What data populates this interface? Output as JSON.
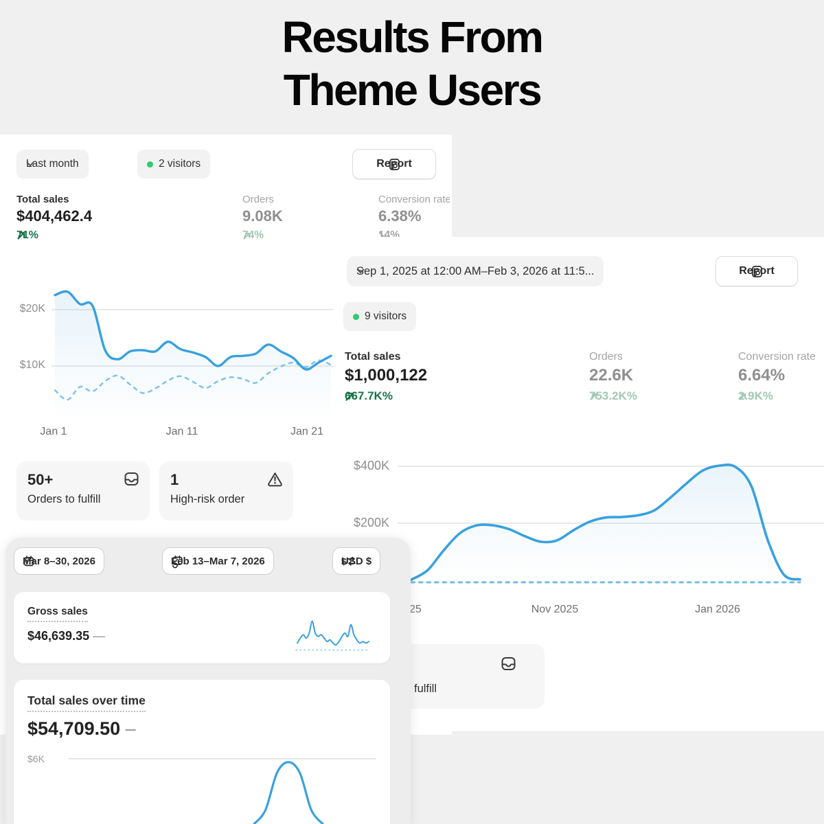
{
  "page": {
    "title_line1": "Results From",
    "title_line2": "Theme Users"
  },
  "colors": {
    "background": "#f0f0f0",
    "panel_white": "#ffffff",
    "panel_gray": "#ededee",
    "chart_blue": "#38a1de",
    "chart_blue_dashed": "#7fc3ea",
    "delta_green": "#17754a",
    "delta_sage": "#a0c8b4",
    "delta_gray": "#a6a6a6",
    "visitor_dot_green": "#2fcb70",
    "gridline": "#e2e2e2"
  },
  "panel_a": {
    "filter_label": "Last month",
    "visitors_badge": "2 visitors",
    "report_label": "Report",
    "metrics": [
      {
        "label": "Total sales",
        "value": "$404,462.4",
        "delta": "71%",
        "direction": "up"
      },
      {
        "label": "Orders",
        "value": "9.08K",
        "delta": "74%",
        "direction": "up"
      },
      {
        "label": "Conversion rate",
        "value": "6.38%",
        "delta": "14%",
        "direction": "down"
      }
    ],
    "cards": [
      {
        "value": "50+",
        "label": "Orders to fulfill",
        "icon": "inbox-icon"
      },
      {
        "value": "1",
        "label": "High-risk order",
        "icon": "alert-triangle-icon"
      }
    ]
  },
  "panel_b": {
    "date_range": "Sep 1, 2025 at 12:00 AM–Feb 3, 2026 at 11:5...",
    "report_label": "Report",
    "visitors_badge": "9 visitors",
    "metrics": [
      {
        "label": "Total sales",
        "value": "$1,000,122",
        "delta": "667.7K%",
        "direction": "up"
      },
      {
        "label": "Orders",
        "value": "22.6K",
        "delta": "753.2K%",
        "direction": "up"
      },
      {
        "label": "Conversion rate",
        "value": "6.64%",
        "delta": "2.9K%",
        "direction": "up"
      }
    ],
    "fulfill_card": {
      "visible_label": "fulfill",
      "icon": "inbox-icon"
    }
  },
  "panel_c": {
    "date_pill": "Mar 8–30, 2026",
    "compare_pill": "Feb 13–Mar 7, 2026",
    "currency_pill": "USD $",
    "cards": [
      {
        "title": "Gross sales",
        "value": "$46,639.35",
        "change": "—"
      },
      {
        "title": "Total sales over time",
        "value": "$54,709.50",
        "change": "–"
      }
    ]
  },
  "chart_data": [
    {
      "id": "last-month-sales",
      "type": "line",
      "title": "Total sales — Last month",
      "yticks": [
        "$20K",
        "$10K"
      ],
      "xticks": [
        "Jan 1",
        "Jan 11",
        "Jan 21"
      ],
      "ylim": [
        0,
        24400
      ],
      "unit": "USD",
      "grid": true,
      "legend": "none",
      "series": [
        {
          "name": "current period",
          "style": "solid",
          "values_k": [
            22.6,
            23.2,
            21.0,
            20.7,
            12.8,
            11.2,
            12.6,
            12.8,
            12.6,
            14.3,
            13.0,
            12.4,
            11.6,
            10.0,
            11.6,
            11.8,
            12.2,
            13.8,
            12.6,
            11.4,
            9.4,
            10.6,
            11.8
          ]
        },
        {
          "name": "previous period",
          "style": "dashed",
          "values_k": [
            5.7,
            4.0,
            6.3,
            5.5,
            7.3,
            8.3,
            6.7,
            5.2,
            6.0,
            7.4,
            8.2,
            7.2,
            6.1,
            7.3,
            8.0,
            7.7,
            7.0,
            8.7,
            9.9,
            10.6,
            9.8,
            11.0,
            10.2
          ]
        }
      ]
    },
    {
      "id": "sep-feb-sales",
      "type": "line",
      "title": "Total sales — Sep 1, 2025 to Feb 3, 2026",
      "yticks": [
        "$400K",
        "$200K"
      ],
      "xticks": [
        "25",
        "Nov 2025",
        "Jan 2026"
      ],
      "ylim": [
        0,
        470000
      ],
      "unit": "USD",
      "grid": true,
      "legend": "none",
      "series": [
        {
          "name": "current period",
          "style": "solid",
          "values_k": [
            2,
            35,
            105,
            165,
            192,
            193,
            180,
            155,
            135,
            140,
            175,
            205,
            220,
            222,
            228,
            245,
            290,
            340,
            385,
            402,
            398,
            330,
            143,
            20,
            3
          ]
        },
        {
          "name": "previous period",
          "style": "dashed",
          "values_k": [
            0,
            0
          ]
        }
      ]
    },
    {
      "id": "total-sales-over-time",
      "type": "line",
      "title": "Total sales over time",
      "yticks": [
        "$6K"
      ],
      "xticks": [],
      "ylim": [
        0,
        7000
      ],
      "unit": "USD",
      "grid": true,
      "legend": "none",
      "series": [
        {
          "name": "current period",
          "style": "solid",
          "values_k": [
            0,
            1.3,
            4.7,
            5.7,
            4.7,
            1.3,
            0
          ]
        }
      ]
    },
    {
      "id": "gross-sales-sparkline",
      "type": "line",
      "title": "Gross sales sparkline",
      "yticks": [],
      "xticks": [],
      "ylim": [
        0,
        18
      ],
      "unit": "relative",
      "grid": false,
      "legend": "none",
      "series": [
        {
          "name": "gross sales",
          "style": "solid",
          "values_k": [
            3,
            6,
            8,
            6,
            9,
            16,
            9,
            7,
            8,
            6,
            4,
            5,
            3,
            2,
            4,
            7,
            9,
            7,
            14,
            8,
            5,
            3,
            4,
            3,
            4
          ]
        }
      ]
    }
  ]
}
